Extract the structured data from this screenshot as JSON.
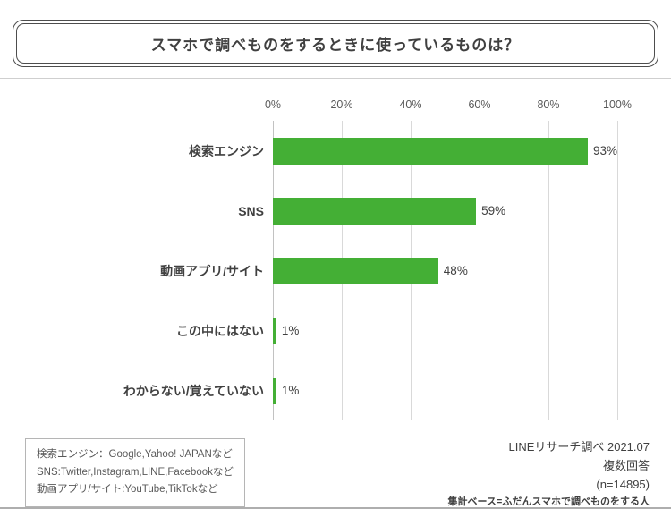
{
  "chart_data": {
    "type": "bar",
    "orientation": "horizontal",
    "title": "スマホで調べものをするときに使っているものは？",
    "categories": [
      "検索エンジン",
      "SNS",
      "動画アプリ/サイト",
      "この中にはない",
      "わからない/覚えていない"
    ],
    "values": [
      93,
      59,
      48,
      1,
      1
    ],
    "value_labels": [
      "93%",
      "59%",
      "48%",
      "1%",
      "1%"
    ],
    "x_ticks": [
      "0%",
      "20%",
      "40%",
      "60%",
      "80%",
      "100%"
    ],
    "xlim": [
      0,
      100
    ],
    "bar_color": "#44af35",
    "grid": true,
    "legend_position": "none"
  },
  "legend": {
    "lines": [
      "検索エンジン：Google,Yahoo! JAPANなど",
      "SNS:Twitter,Instagram,LINE,Facebookなど",
      "動画アプリ/サイト:YouTube,TikTokなど"
    ]
  },
  "source": {
    "line1": "LINEリサーチ調べ 2021.07",
    "line2": "複数回答",
    "line3": "(n=14895)",
    "line4": "集計ベース=ふだんスマホで調べものをする人"
  }
}
